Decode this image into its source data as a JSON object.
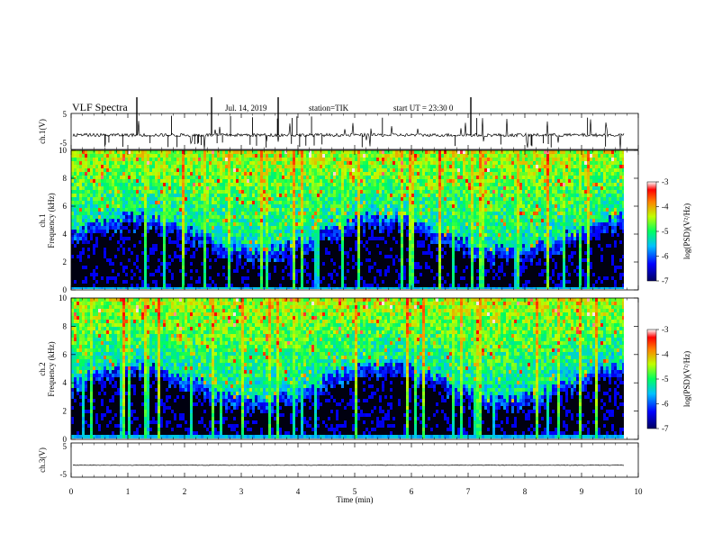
{
  "header": {
    "title": "VLF Spectra",
    "date": "Jul. 14, 2019",
    "station": "station=TIK",
    "start": "start UT = 23:30 0"
  },
  "colors": {
    "low": "#000040",
    "blue": "#0000ff",
    "cyan": "#00ffff",
    "green": "#00ff00",
    "yellow": "#ffff00",
    "red": "#ff0000",
    "white": "#ffffff"
  },
  "chart_data": [
    {
      "type": "line",
      "panel": "ch1-waveform",
      "ylabel": "ch.1(V)",
      "ylim": [
        -5,
        5
      ],
      "y_ticks": [
        "5",
        "-5"
      ],
      "baseline": -1
    },
    {
      "type": "heatmap",
      "panel": "ch1-spectrogram",
      "ylabel_lines": [
        "ch.1",
        "Frequency (kHz)"
      ],
      "ylim": [
        0,
        10
      ],
      "y_ticks": [
        "0",
        "2",
        "4",
        "6",
        "8",
        "10"
      ],
      "xlim": [
        0,
        10
      ],
      "colorbar": {
        "label": "log(PSD)(V²/Hz)",
        "range": [
          -7,
          -3
        ],
        "ticks": [
          "-3",
          "-4",
          "-5",
          "-6",
          "-7"
        ]
      }
    },
    {
      "type": "heatmap",
      "panel": "ch2-spectrogram",
      "ylabel_lines": [
        "ch.2",
        "Frequency (kHz)"
      ],
      "ylim": [
        0,
        10
      ],
      "y_ticks": [
        "0",
        "2",
        "4",
        "6",
        "8",
        "10"
      ],
      "xlim": [
        0,
        10
      ],
      "colorbar": {
        "label": "log(PSD)(V²/Hz)",
        "range": [
          -7,
          -3
        ],
        "ticks": [
          "-3",
          "-4",
          "-5",
          "-6",
          "-7"
        ]
      }
    },
    {
      "type": "line",
      "panel": "ch3-waveform",
      "ylabel": "ch.3(V)",
      "ylim": [
        -5,
        5
      ],
      "y_ticks": [
        "5",
        "-5"
      ],
      "baseline": -1.5
    }
  ],
  "x_axis": {
    "label": "Time (min)",
    "range": [
      0,
      10
    ],
    "ticks": [
      "0",
      "1",
      "2",
      "3",
      "4",
      "5",
      "6",
      "7",
      "8",
      "9",
      "10"
    ]
  }
}
